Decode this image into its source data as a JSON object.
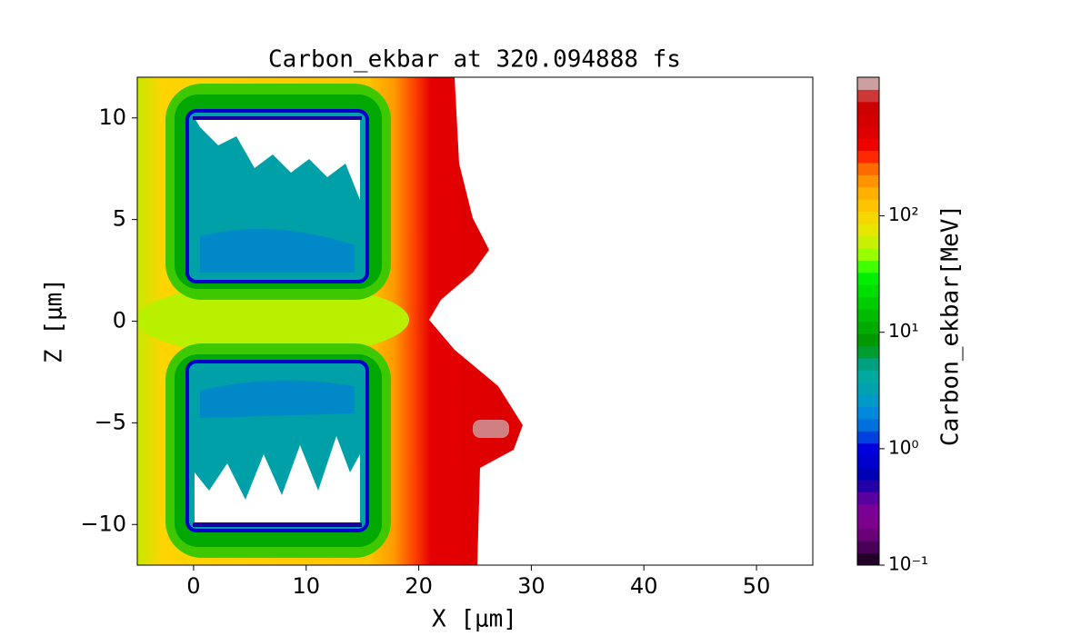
{
  "chart_data": {
    "type": "contour",
    "title": "Carbon_ekbar at 320.094888 fs",
    "x_label": "X [μm]",
    "y_label": "Z [μm]",
    "xlim": [
      -5,
      55
    ],
    "ylim": [
      -12,
      12
    ],
    "xticks": [
      0,
      10,
      20,
      30,
      40,
      50
    ],
    "yticks": [
      {
        "value": -10,
        "label": "−10"
      },
      {
        "value": -5,
        "label": "−5"
      },
      0,
      5,
      10
    ],
    "colorbar": {
      "label": "Carbon_ekbar[MeV]",
      "scale": "log",
      "lim": [
        0.1,
        1550
      ],
      "ticks": [
        {
          "value": 0.1,
          "label": "10⁻¹"
        },
        {
          "value": 1,
          "label": "10⁰"
        },
        {
          "value": 10,
          "label": "10¹"
        },
        {
          "value": 100,
          "label": "10²"
        }
      ],
      "colors": [
        "#220028",
        "#4a0058",
        "#6a0078",
        "#7c008c",
        "#7a0098",
        "#5a00a0",
        "#2400a8",
        "#0000b4",
        "#0000cc",
        "#0000dd",
        "#0040dd",
        "#0070dd",
        "#0088dd",
        "#0099c8",
        "#00a2b0",
        "#00aaa0",
        "#00a080",
        "#009c30",
        "#009900",
        "#00aa00",
        "#00bb00",
        "#00cc00",
        "#00dd00",
        "#00ee00",
        "#40ff00",
        "#99ff00",
        "#c8f000",
        "#e6e600",
        "#f6d800",
        "#ffc400",
        "#ffb000",
        "#ff9400",
        "#ff6a00",
        "#ff2800",
        "#ee0000",
        "#dd0000",
        "#d40000",
        "#cc0000",
        "#cc3838",
        "#cca0a0"
      ]
    }
  }
}
